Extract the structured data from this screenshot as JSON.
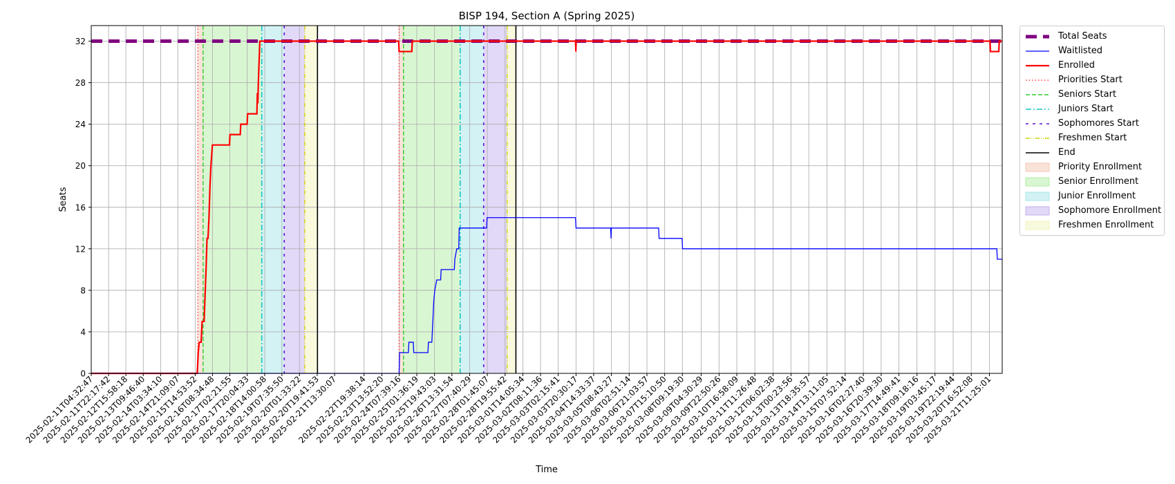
{
  "chart_data": {
    "type": "line",
    "title": "BISP 194, Section A (Spring 2025)",
    "xlabel": "Time",
    "ylabel": "Seats",
    "ylim": [
      0,
      33.5
    ],
    "yticks": [
      0,
      4,
      8,
      12,
      16,
      20,
      24,
      28,
      32
    ],
    "grid": true,
    "legend_position": "outside-top-right",
    "x_start": "2025-02-11T04:32:47",
    "x_end": "2025-03-22T00:30:00",
    "xticks": [
      "2025-02-11T04:32:47",
      "2025-02-11T22:17:42",
      "2025-02-12T15:58:18",
      "2025-02-13T09:46:40",
      "2025-02-14T03:34:10",
      "2025-02-14T21:09:07",
      "2025-02-15T14:53:52",
      "2025-02-16T08:34:48",
      "2025-02-17T02:21:55",
      "2025-02-17T20:04:33",
      "2025-02-18T14:00:58",
      "2025-02-19T07:35:50",
      "2025-02-20T01:33:22",
      "2025-02-20T19:41:53",
      "2025-02-21T13:30:07",
      "2025-02-22T19:38:14",
      "2025-02-23T13:52:20",
      "2025-02-24T07:39:16",
      "2025-02-25T01:36:19",
      "2025-02-25T19:43:03",
      "2025-02-26T13:31:54",
      "2025-02-27T07:40:29",
      "2025-02-28T01:45:07",
      "2025-02-28T19:55:42",
      "2025-03-01T14:05:34",
      "2025-03-02T08:11:36",
      "2025-03-03T02:15:41",
      "2025-03-03T20:30:17",
      "2025-03-04T14:33:37",
      "2025-03-05T08:43:27",
      "2025-03-06T02:51:14",
      "2025-03-06T21:03:57",
      "2025-03-07T15:10:50",
      "2025-03-08T09:19:30",
      "2025-03-09T04:30:29",
      "2025-03-09T22:50:26",
      "2025-03-10T16:58:09",
      "2025-03-11T11:26:48",
      "2025-03-12T06:02:38",
      "2025-03-13T00:23:56",
      "2025-03-13T18:35:57",
      "2025-03-14T13:11:05",
      "2025-03-15T07:52:14",
      "2025-03-16T02:27:40",
      "2025-03-16T20:39:30",
      "2025-03-17T14:49:41",
      "2025-03-18T09:18:16",
      "2025-03-19T03:45:17",
      "2025-03-19T22:19:44",
      "2025-03-20T16:52:08",
      "2025-03-21T11:25:01"
    ],
    "periods": [
      {
        "name": "Priority Enrollment",
        "start": "2025-02-15T17:30:00",
        "end": "2025-02-15T23:00:00",
        "color": "#f4c7b3"
      },
      {
        "name": "Senior Enrollment",
        "start": "2025-02-15T23:00:00",
        "end": "2025-02-18T11:00:00",
        "color": "#b4eea6"
      },
      {
        "name": "Junior Enrollment",
        "start": "2025-02-18T11:00:00",
        "end": "2025-02-19T10:00:00",
        "color": "#a5e6ea"
      },
      {
        "name": "Sophomore Enrollment",
        "start": "2025-02-19T10:00:00",
        "end": "2025-02-20T07:00:00",
        "color": "#c6b1ef"
      },
      {
        "name": "Freshmen Enrollment",
        "start": "2025-02-20T07:00:00",
        "end": "2025-02-20T20:00:00",
        "color": "#f3f3bd"
      },
      {
        "name": "Priority Enrollment",
        "start": "2025-02-24T07:30:00",
        "end": "2025-02-24T12:00:00",
        "color": "#f4c7b3"
      },
      {
        "name": "Senior Enrollment",
        "start": "2025-02-24T12:00:00",
        "end": "2025-02-26T22:00:00",
        "color": "#b4eea6"
      },
      {
        "name": "Junior Enrollment",
        "start": "2025-02-26T22:00:00",
        "end": "2025-02-27T22:00:00",
        "color": "#a5e6ea"
      },
      {
        "name": "Sophomore Enrollment",
        "start": "2025-02-27T22:00:00",
        "end": "2025-02-28T22:00:00",
        "color": "#c6b1ef"
      },
      {
        "name": "Freshmen Enrollment",
        "start": "2025-02-28T22:00:00",
        "end": "2025-03-01T07:00:00",
        "color": "#f3f3bd"
      }
    ],
    "vlines": [
      {
        "name": "Priorities Start",
        "x": "2025-02-15T17:30:00",
        "color": "#ff3b3b",
        "dash": "1.5,3",
        "width": 1.4
      },
      {
        "name": "Seniors Start",
        "x": "2025-02-15T23:00:00",
        "color": "#2ecc2e",
        "dash": "6,3",
        "width": 1.4
      },
      {
        "name": "Juniors Start",
        "x": "2025-02-18T11:00:00",
        "color": "#11c6c6",
        "dash": "8,3,2,3",
        "width": 1.6
      },
      {
        "name": "Sophomores Start",
        "x": "2025-02-19T10:00:00",
        "color": "#5a10d8",
        "dash": "4,6",
        "width": 1.6
      },
      {
        "name": "Freshmen Start",
        "x": "2025-02-20T07:00:00",
        "color": "#d4d400",
        "dash": "6,2,1,2,1,2",
        "width": 1.4
      },
      {
        "name": "End",
        "x": "2025-02-20T20:00:00",
        "color": "#000000",
        "dash": "",
        "width": 1.6
      },
      {
        "name": "Priorities Start",
        "x": "2025-02-24T07:30:00",
        "color": "#ff3b3b",
        "dash": "1.5,3",
        "width": 1.4
      },
      {
        "name": "Seniors Start",
        "x": "2025-02-24T12:00:00",
        "color": "#2ecc2e",
        "dash": "6,3",
        "width": 1.4
      },
      {
        "name": "Juniors Start",
        "x": "2025-02-26T22:00:00",
        "color": "#11c6c6",
        "dash": "8,3,2,3",
        "width": 1.6
      },
      {
        "name": "Sophomores Start",
        "x": "2025-02-27T22:00:00",
        "color": "#5a10d8",
        "dash": "4,6",
        "width": 1.6
      },
      {
        "name": "Freshmen Start",
        "x": "2025-02-28T22:00:00",
        "color": "#d4d400",
        "dash": "6,2,1,2,1,2",
        "width": 1.4
      },
      {
        "name": "End",
        "x": "2025-03-01T07:00:00",
        "color": "#000000",
        "dash": "",
        "width": 1.6
      }
    ],
    "series": [
      {
        "name": "Total Seats",
        "color": "#800080",
        "width": 5,
        "dash": "16,9",
        "points": [
          [
            "2025-02-11T04:32:47",
            32
          ],
          [
            "2025-03-22T00:30:00",
            32
          ]
        ]
      },
      {
        "name": "Enrolled",
        "color": "#ff0000",
        "width": 2.2,
        "dash": "",
        "points": [
          [
            "2025-02-11T04:32:47",
            0
          ],
          [
            "2025-02-15T17:00:00",
            0
          ],
          [
            "2025-02-15T18:00:00",
            2
          ],
          [
            "2025-02-15T19:00:00",
            3
          ],
          [
            "2025-02-15T21:00:00",
            3
          ],
          [
            "2025-02-15T22:00:00",
            5
          ],
          [
            "2025-02-16T00:00:00",
            5
          ],
          [
            "2025-02-16T02:00:00",
            10
          ],
          [
            "2025-02-16T03:00:00",
            13
          ],
          [
            "2025-02-16T04:00:00",
            13
          ],
          [
            "2025-02-16T05:00:00",
            15
          ],
          [
            "2025-02-16T06:00:00",
            18
          ],
          [
            "2025-02-16T07:00:00",
            20
          ],
          [
            "2025-02-16T08:30:00",
            22
          ],
          [
            "2025-02-17T02:00:00",
            22
          ],
          [
            "2025-02-17T02:30:00",
            23
          ],
          [
            "2025-02-17T13:00:00",
            23
          ],
          [
            "2025-02-17T13:30:00",
            24
          ],
          [
            "2025-02-17T20:00:00",
            24
          ],
          [
            "2025-02-17T20:30:00",
            25
          ],
          [
            "2025-02-18T06:00:00",
            25
          ],
          [
            "2025-02-18T06:30:00",
            27
          ],
          [
            "2025-02-18T07:00:00",
            26
          ],
          [
            "2025-02-18T07:30:00",
            28
          ],
          [
            "2025-02-18T09:00:00",
            32
          ],
          [
            "2025-02-24T07:00:00",
            32
          ],
          [
            "2025-02-24T07:30:00",
            31
          ],
          [
            "2025-02-24T20:30:00",
            31
          ],
          [
            "2025-02-24T21:00:00",
            32
          ],
          [
            "2025-03-03T20:00:00",
            32
          ],
          [
            "2025-03-03T20:20:00",
            31
          ],
          [
            "2025-03-03T20:40:00",
            32
          ],
          [
            "2025-03-21T12:00:00",
            32
          ],
          [
            "2025-03-21T12:30:00",
            31
          ],
          [
            "2025-03-21T21:00:00",
            31
          ],
          [
            "2025-03-21T21:30:00",
            32
          ],
          [
            "2025-03-22T00:30:00",
            32
          ]
        ]
      },
      {
        "name": "Waitlisted",
        "color": "#0000ff",
        "width": 1.3,
        "dash": "",
        "points": [
          [
            "2025-02-11T04:32:47",
            0
          ],
          [
            "2025-02-24T07:30:00",
            0
          ],
          [
            "2025-02-24T08:00:00",
            2
          ],
          [
            "2025-02-24T17:00:00",
            2
          ],
          [
            "2025-02-24T17:30:00",
            3
          ],
          [
            "2025-02-24T22:00:00",
            3
          ],
          [
            "2025-02-24T22:30:00",
            2
          ],
          [
            "2025-02-25T13:00:00",
            2
          ],
          [
            "2025-02-25T13:30:00",
            3
          ],
          [
            "2025-02-25T17:00:00",
            3
          ],
          [
            "2025-02-25T17:30:00",
            4
          ],
          [
            "2025-02-25T19:00:00",
            7
          ],
          [
            "2025-02-25T20:00:00",
            8
          ],
          [
            "2025-02-25T22:00:00",
            9
          ],
          [
            "2025-02-26T02:00:00",
            9
          ],
          [
            "2025-02-26T02:30:00",
            10
          ],
          [
            "2025-02-26T16:00:00",
            10
          ],
          [
            "2025-02-26T16:30:00",
            11
          ],
          [
            "2025-02-26T18:30:00",
            12
          ],
          [
            "2025-02-26T20:30:00",
            12
          ],
          [
            "2025-02-26T21:00:00",
            14
          ],
          [
            "2025-02-28T01:00:00",
            14
          ],
          [
            "2025-02-28T01:30:00",
            15
          ],
          [
            "2025-03-03T20:00:00",
            15
          ],
          [
            "2025-03-03T20:30:00",
            14
          ],
          [
            "2025-03-05T08:00:00",
            14
          ],
          [
            "2025-03-05T08:20:00",
            13
          ],
          [
            "2025-03-05T08:40:00",
            14
          ],
          [
            "2025-03-07T09:00:00",
            14
          ],
          [
            "2025-03-07T09:30:00",
            13
          ],
          [
            "2025-03-08T09:00:00",
            13
          ],
          [
            "2025-03-08T09:30:00",
            12
          ],
          [
            "2025-03-21T19:00:00",
            12
          ],
          [
            "2025-03-21T19:30:00",
            11
          ],
          [
            "2025-03-22T00:30:00",
            11
          ]
        ]
      }
    ],
    "legend": [
      {
        "label": "Total Seats",
        "kind": "line",
        "color": "#800080",
        "width": 5,
        "dash": "16,9"
      },
      {
        "label": "Waitlisted",
        "kind": "line",
        "color": "#0000ff",
        "width": 1.3,
        "dash": ""
      },
      {
        "label": "Enrolled",
        "kind": "line",
        "color": "#ff0000",
        "width": 2.2,
        "dash": ""
      },
      {
        "label": "Priorities Start",
        "kind": "line",
        "color": "#ff3b3b",
        "width": 1.4,
        "dash": "1.5,3"
      },
      {
        "label": "Seniors Start",
        "kind": "line",
        "color": "#2ecc2e",
        "width": 1.4,
        "dash": "6,3"
      },
      {
        "label": "Juniors Start",
        "kind": "line",
        "color": "#11c6c6",
        "width": 1.6,
        "dash": "8,3,2,3"
      },
      {
        "label": "Sophomores Start",
        "kind": "line",
        "color": "#5a10d8",
        "width": 1.6,
        "dash": "4,6"
      },
      {
        "label": "Freshmen Start",
        "kind": "line",
        "color": "#d4d400",
        "width": 1.4,
        "dash": "6,2,1,2,1,2"
      },
      {
        "label": "End",
        "kind": "line",
        "color": "#000000",
        "width": 1.6,
        "dash": ""
      },
      {
        "label": "Priority Enrollment",
        "kind": "patch",
        "color": "#f4c7b3"
      },
      {
        "label": "Senior Enrollment",
        "kind": "patch",
        "color": "#b4eea6"
      },
      {
        "label": "Junior Enrollment",
        "kind": "patch",
        "color": "#a5e6ea"
      },
      {
        "label": "Sophomore Enrollment",
        "kind": "patch",
        "color": "#c6b1ef"
      },
      {
        "label": "Freshmen Enrollment",
        "kind": "patch",
        "color": "#f3f3bd"
      }
    ]
  }
}
